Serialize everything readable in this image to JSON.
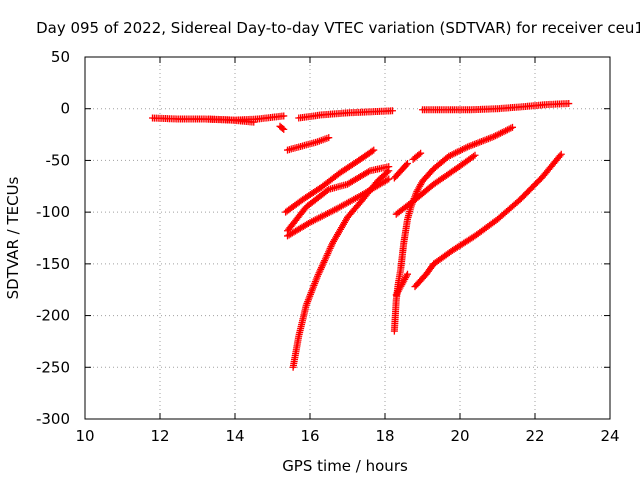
{
  "chart_data": {
    "type": "scatter",
    "title": "Day 095 of 2022, Sidereal Day-to-day VTEC variation (SDTVAR) for receiver ceu1",
    "xlabel": "GPS time / hours",
    "ylabel": "SDTVAR / TECUs",
    "xlim": [
      10,
      24
    ],
    "ylim": [
      -300,
      50
    ],
    "xticks": [
      10,
      12,
      14,
      16,
      18,
      20,
      22,
      24
    ],
    "yticks": [
      50,
      0,
      -50,
      -100,
      -150,
      -200,
      -250,
      -300
    ],
    "grid": true,
    "marker": "+",
    "color": "#ff0000",
    "series": [
      {
        "x": [
          11.8,
          12.5,
          13.2,
          13.9,
          14.5
        ],
        "y": [
          -9,
          -10,
          -10,
          -11,
          -13
        ]
      },
      {
        "x": [
          13.3,
          14.0,
          14.6,
          15.3
        ],
        "y": [
          -10,
          -11,
          -10,
          -7
        ]
      },
      {
        "x": [
          15.2,
          15.3
        ],
        "y": [
          -17,
          -20
        ]
      },
      {
        "x": [
          15.7,
          16.3,
          17.0,
          17.6,
          18.2
        ],
        "y": [
          -9,
          -6,
          -4,
          -3,
          -2
        ]
      },
      {
        "x": [
          19.0,
          19.6,
          20.3,
          21.0,
          21.7,
          22.3,
          22.9
        ],
        "y": [
          -1,
          -1,
          -1,
          0,
          2,
          4,
          5
        ]
      },
      {
        "x": [
          15.4,
          15.8,
          16.2,
          16.5
        ],
        "y": [
          -40,
          -36,
          -32,
          -28
        ]
      },
      {
        "x": [
          15.35,
          15.8,
          16.3,
          16.8,
          17.3,
          17.7
        ],
        "y": [
          -100,
          -88,
          -76,
          -62,
          -50,
          -40
        ]
      },
      {
        "x": [
          15.4,
          16.0,
          16.7,
          17.4,
          18.1
        ],
        "y": [
          -123,
          -110,
          -97,
          -83,
          -68
        ]
      },
      {
        "x": [
          15.4,
          15.9,
          16.5,
          17.0,
          17.6,
          18.1
        ],
        "y": [
          -118,
          -95,
          -78,
          -73,
          -60,
          -56
        ]
      },
      {
        "x": [
          15.55,
          15.7,
          15.9,
          16.2,
          16.6,
          17.0,
          17.4,
          17.8,
          18.1
        ],
        "y": [
          -250,
          -220,
          -190,
          -162,
          -130,
          -105,
          -88,
          -70,
          -60
        ]
      },
      {
        "x": [
          18.25,
          18.45,
          18.6
        ],
        "y": [
          -67,
          -59,
          -53
        ]
      },
      {
        "x": [
          18.75,
          18.95
        ],
        "y": [
          -49,
          -43
        ]
      },
      {
        "x": [
          18.25,
          18.3,
          18.35,
          18.42,
          18.5,
          18.6,
          18.7,
          18.85,
          19.0,
          19.3,
          19.7,
          20.2,
          20.9,
          21.4
        ],
        "y": [
          -215,
          -185,
          -170,
          -155,
          -130,
          -107,
          -94,
          -80,
          -70,
          -58,
          -46,
          -37,
          -27,
          -18
        ]
      },
      {
        "x": [
          18.3,
          18.8,
          19.3,
          19.9,
          20.4
        ],
        "y": [
          -102,
          -88,
          -73,
          -58,
          -45
        ]
      },
      {
        "x": [
          18.3,
          18.45,
          18.6
        ],
        "y": [
          -180,
          -170,
          -160
        ]
      },
      {
        "x": [
          18.8,
          19.1,
          19.3
        ],
        "y": [
          -172,
          -160,
          -150
        ]
      },
      {
        "x": [
          19.3,
          19.8,
          20.4,
          21.0,
          21.6,
          22.2,
          22.7
        ],
        "y": [
          -150,
          -137,
          -123,
          -107,
          -88,
          -66,
          -44
        ]
      }
    ]
  }
}
